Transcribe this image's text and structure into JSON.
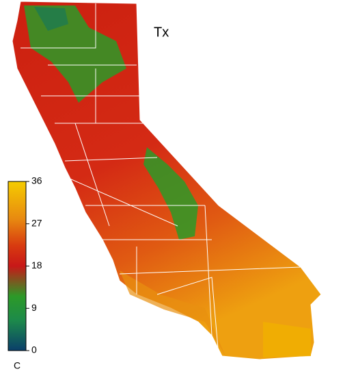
{
  "title": "Tx",
  "colorbar": {
    "label": "C",
    "range": [
      0,
      36
    ],
    "ticks": [
      0,
      9,
      18,
      27,
      36
    ]
  }
}
